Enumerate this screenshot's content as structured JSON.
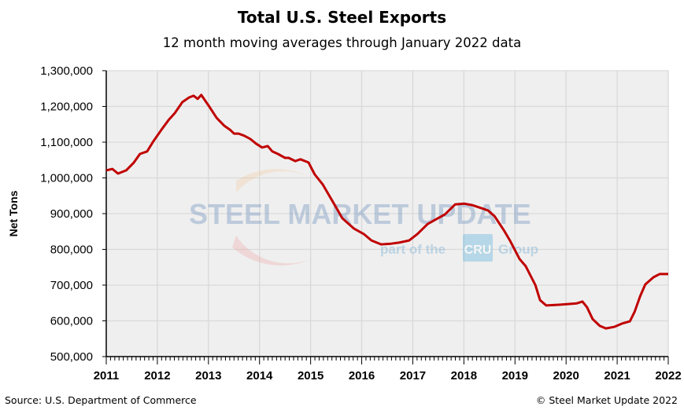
{
  "title": "Total U.S. Steel Exports",
  "subtitle": "12 month moving averages through January 2022 data",
  "source": "Source: U.S. Department of Commerce",
  "copyright": "© Steel Market Update 2022",
  "watermark": {
    "main": "STEEL MARKET UPDATE",
    "sub_left": "part of the",
    "badge": "CRU",
    "sub_right": "Group"
  },
  "colors": {
    "line": "#c00000",
    "plot_bg": "#efefef",
    "grid": "#d9d9d9"
  },
  "chart_data": {
    "type": "line",
    "title": "Total U.S. Steel Exports",
    "subtitle": "12 month moving averages through January 2022 data",
    "xlabel": "",
    "ylabel": "Net Tons",
    "xlim": [
      2011,
      2022
    ],
    "ylim": [
      500000,
      1300000
    ],
    "grid": true,
    "x_ticks": [
      "2011",
      "2012",
      "2013",
      "2014",
      "2015",
      "2016",
      "2017",
      "2018",
      "2019",
      "2020",
      "2021",
      "2022"
    ],
    "y_ticks": [
      "500,000",
      "600,000",
      "700,000",
      "800,000",
      "900,000",
      "1,000,000",
      "1,100,000",
      "1,200,000",
      "1,300,000"
    ],
    "series": [
      {
        "x": [
          2011.0,
          2011.12,
          2011.23,
          2011.39,
          2011.54,
          2011.66,
          2011.8,
          2011.92,
          2012.09,
          2012.22,
          2012.34,
          2012.49,
          2012.62,
          2012.71,
          2012.79,
          2012.86,
          2013.0,
          2013.16,
          2013.31,
          2013.42,
          2013.5,
          2013.59,
          2013.7,
          2013.82,
          2013.93,
          2014.05,
          2014.16,
          2014.25,
          2014.36,
          2014.5,
          2014.57,
          2014.7,
          2014.8,
          2014.96,
          2015.08,
          2015.24,
          2015.39,
          2015.51,
          2015.62,
          2015.85,
          2016.04,
          2016.19,
          2016.38,
          2016.58,
          2016.73,
          2016.93,
          2017.09,
          2017.29,
          2017.49,
          2017.63,
          2017.83,
          2018.01,
          2018.16,
          2018.35,
          2018.47,
          2018.6,
          2018.78,
          2018.9,
          2019.09,
          2019.21,
          2019.4,
          2019.49,
          2019.61,
          2019.86,
          2020.04,
          2020.21,
          2020.32,
          2020.41,
          2020.52,
          2020.66,
          2020.78,
          2020.94,
          2021.09,
          2021.25,
          2021.34,
          2021.45,
          2021.55,
          2021.71,
          2021.83,
          2021.96,
          2022.0
        ],
        "y": [
          1021000,
          1025000,
          1012000,
          1021000,
          1043000,
          1067000,
          1074000,
          1102000,
          1137000,
          1162000,
          1181000,
          1212000,
          1225000,
          1230000,
          1221000,
          1232000,
          1203000,
          1168000,
          1146000,
          1135000,
          1124000,
          1124000,
          1118000,
          1109000,
          1096000,
          1085000,
          1089000,
          1074000,
          1067000,
          1056000,
          1056000,
          1047000,
          1052000,
          1043000,
          1010000,
          981000,
          944000,
          915000,
          887000,
          858000,
          843000,
          825000,
          814000,
          816000,
          819000,
          825000,
          843000,
          871000,
          887000,
          898000,
          926000,
          928000,
          924000,
          915000,
          909000,
          893000,
          854000,
          825000,
          773000,
          753000,
          700000,
          658000,
          643000,
          645000,
          647000,
          649000,
          654000,
          638000,
          605000,
          586000,
          579000,
          583000,
          592000,
          599000,
          625000,
          669000,
          702000,
          722000,
          731000,
          731000,
          731000
        ]
      }
    ]
  }
}
